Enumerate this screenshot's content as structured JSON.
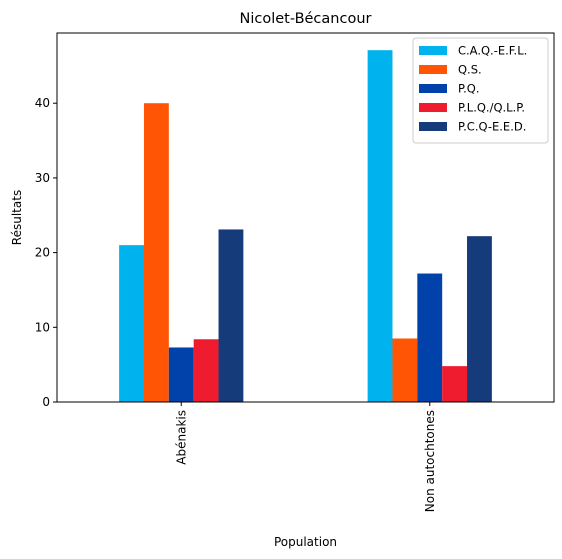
{
  "chart_data": {
    "type": "bar",
    "title": "Nicolet-Bécancour",
    "xlabel": "Population",
    "ylabel": "Résultats",
    "categories": [
      "Abénakis",
      "Non autochtones"
    ],
    "series": [
      {
        "name": "C.A.Q.-E.F.L.",
        "color": "#00b2ee",
        "values": [
          21.0,
          47.1
        ]
      },
      {
        "name": "Q.S.",
        "color": "#ff5504",
        "values": [
          40.0,
          8.5
        ]
      },
      {
        "name": "P.Q.",
        "color": "#0041aa",
        "values": [
          7.3,
          17.2
        ]
      },
      {
        "name": "P.L.Q./Q.L.P.",
        "color": "#ee1c2e",
        "values": [
          8.4,
          4.8
        ]
      },
      {
        "name": "P.C.Q-E.E.D.",
        "color": "#163b7b",
        "values": [
          23.1,
          22.2
        ]
      }
    ],
    "yticks": [
      0,
      10,
      20,
      30,
      40
    ],
    "ylim": [
      0,
      49.4
    ],
    "legend_position": "top-right",
    "grid": false
  }
}
